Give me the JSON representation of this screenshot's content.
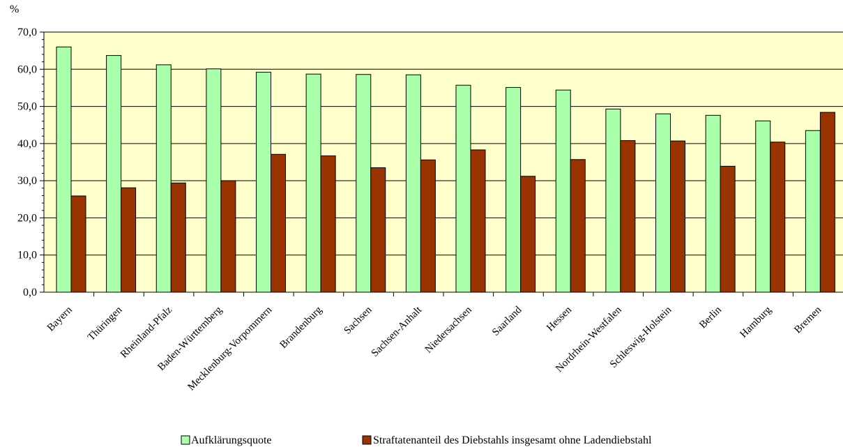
{
  "chart_data": {
    "type": "bar",
    "ylabel": "%",
    "xlabel": "",
    "ylim": [
      0,
      70
    ],
    "ytick_step": 10,
    "yticks": [
      "0,0",
      "10,0",
      "20,0",
      "30,0",
      "40,0",
      "50,0",
      "60,0",
      "70,0"
    ],
    "grid": true,
    "legend_placement": "bottom",
    "categories": [
      "Bayern",
      "Thüringen",
      "Rheinland-Pfalz",
      "Baden-Württemberg",
      "Mecklenburg-Vorpommern",
      "Brandenburg",
      "Sachsen",
      "Sachsen-Anhalt",
      "Niedersachsen",
      "Saarland",
      "Hessen",
      "Nordrhein-Westfalen",
      "Schleswig-Holstein",
      "Berlin",
      "Hamburg",
      "Bremen"
    ],
    "series": [
      {
        "name": "Aufklärungsquote",
        "color": "#aaffaa",
        "values": [
          66.0,
          63.7,
          61.2,
          60.1,
          59.2,
          58.7,
          58.6,
          58.5,
          55.7,
          55.1,
          54.4,
          49.3,
          48.0,
          47.6,
          46.1,
          43.5
        ]
      },
      {
        "name": "Straftatenanteil des Diebstahls insgesamt ohne Ladendiebstahl",
        "color": "#993300",
        "values": [
          25.9,
          28.1,
          29.4,
          30.0,
          37.1,
          36.7,
          33.5,
          35.6,
          38.3,
          31.2,
          35.7,
          40.8,
          40.7,
          33.9,
          40.4,
          48.4
        ]
      }
    ],
    "plot_background": "#ffffcc"
  }
}
